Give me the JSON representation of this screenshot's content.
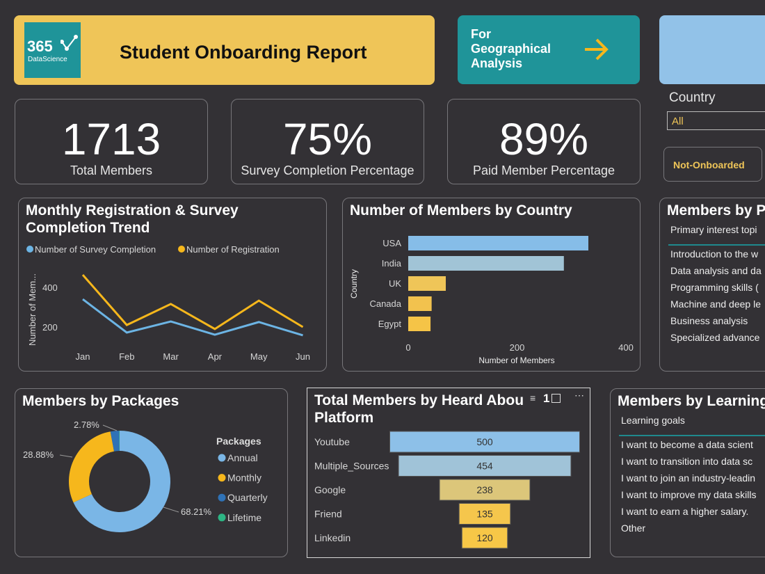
{
  "header": {
    "logo_text": "365",
    "logo_sub": "DataScience",
    "title": "Student Onboarding Report"
  },
  "nav_button": {
    "label_lines": [
      "For",
      "Geographical",
      "Analysis"
    ],
    "icon": "arrow-right-icon"
  },
  "filter": {
    "label": "Country",
    "value": "All"
  },
  "toggle": {
    "label": "Not-Onboarded"
  },
  "kpis": [
    {
      "value": "1713",
      "label": "Total Members"
    },
    {
      "value": "75%",
      "label": "Survey Completion Percentage"
    },
    {
      "value": "89%",
      "label": "Paid Member Percentage"
    }
  ],
  "colors": {
    "bg": "#333135",
    "yellow": "#efc558",
    "teal": "#1f9499",
    "blue": "#7ab6e6",
    "orange": "#f6b71c"
  },
  "interest": {
    "title": "Members by P",
    "column": "Primary interest topi",
    "items": [
      "Introduction to the w",
      "Data analysis and da",
      "Programming skills (",
      "Machine and deep le",
      "Business analysis",
      "Specialized advance"
    ]
  },
  "learning": {
    "title": "Members by Learning",
    "column": "Learning goals",
    "items": [
      "I want to become a data scient",
      "I want to transition into data sc",
      "I want to join an industry-leadin",
      "I want to improve my data skills",
      "I want to earn a higher salary.",
      "Other"
    ]
  },
  "chart_data": [
    {
      "type": "line",
      "title": "Monthly Registration & Survey Completion Trend",
      "ylabel": "Number of Mem...",
      "categories": [
        "Jan",
        "Feb",
        "Mar",
        "Apr",
        "May",
        "Jun"
      ],
      "yticks": [
        "200",
        "400"
      ],
      "series": [
        {
          "name": "Number of Survey Completion",
          "color": "#6cb4e4",
          "values": [
            340,
            172,
            228,
            161,
            225,
            158
          ]
        },
        {
          "name": "Number of Registration",
          "color": "#f6b71c",
          "values": [
            463,
            210,
            316,
            190,
            333,
            200
          ]
        }
      ]
    },
    {
      "type": "bar",
      "title": "Number of Members by Country",
      "xlabel": "Number of Members",
      "ylabel": "Country",
      "categories": [
        "USA",
        "India",
        "UK",
        "Canada",
        "Egypt"
      ],
      "values": [
        331,
        286,
        69,
        43,
        41
      ],
      "colors": [
        "#86bde8",
        "#a1c4d6",
        "#efc558",
        "#f2c24e",
        "#f5c447"
      ],
      "xticks": [
        "0",
        "200",
        "400"
      ],
      "xlim": [
        0,
        400
      ]
    },
    {
      "type": "pie",
      "title": "Members by Packages",
      "legend_title": "Packages",
      "categories": [
        "Annual",
        "Monthly",
        "Quarterly",
        "Lifetime"
      ],
      "values": [
        68.21,
        28.88,
        2.78,
        0.13
      ],
      "labels": [
        "68.21%",
        "28.88%",
        "2.78%",
        ""
      ],
      "colors": [
        "#7ab6e6",
        "#f6b71c",
        "#2f72b6",
        "#2db584"
      ]
    },
    {
      "type": "bar",
      "title": "Total Members by Heard Abou Platform",
      "title_lines": [
        "Total Members by Heard Abou",
        "Platform"
      ],
      "categories": [
        "Youtube",
        "Multiple_Sources",
        "Google",
        "Friend",
        "Linkedin"
      ],
      "values": [
        500,
        454,
        238,
        135,
        120
      ],
      "labels": [
        "500",
        "454",
        "238",
        "135",
        "120"
      ],
      "colors": [
        "#8dc0e8",
        "#a0c3d8",
        "#dcc67a",
        "#f5c64c",
        "#f7c747"
      ],
      "header_icons": [
        "filter-icon",
        "focus-mode-icon",
        "more-options-icon"
      ],
      "filter_count": "1"
    }
  ]
}
